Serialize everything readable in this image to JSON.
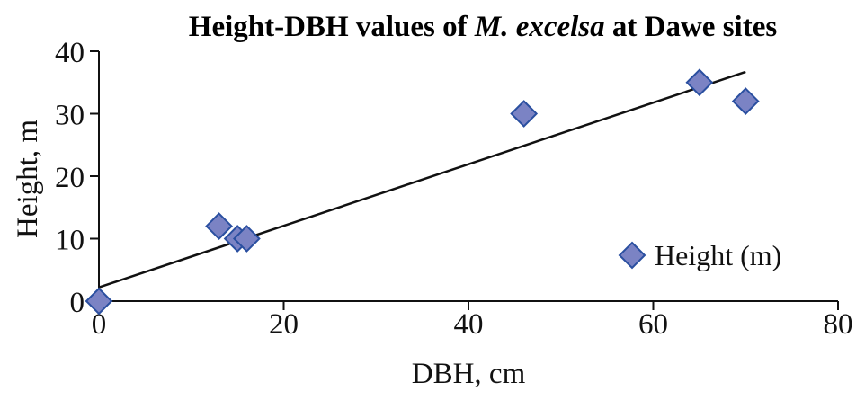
{
  "chart_data": {
    "type": "scatter",
    "title": {
      "prefix": "Height-DBH values of ",
      "italic": "M. excelsa",
      "suffix": " at Dawe sites"
    },
    "xlabel": "DBH, cm",
    "ylabel": "Height, m",
    "xlim": [
      0,
      80
    ],
    "ylim": [
      0,
      40
    ],
    "x_ticks": [
      "0",
      "20",
      "40",
      "60",
      "80"
    ],
    "y_ticks": [
      "0",
      "10",
      "20",
      "30",
      "40"
    ],
    "grid": false,
    "legend_position": "bottom-right",
    "series": [
      {
        "name": "Height (m)",
        "marker": "diamond",
        "color": "#7b83c4",
        "edge_color": "#2a4fa0",
        "points": [
          {
            "x": 0,
            "y": 0
          },
          {
            "x": 13,
            "y": 12
          },
          {
            "x": 15,
            "y": 10
          },
          {
            "x": 16,
            "y": 10
          },
          {
            "x": 46,
            "y": 30
          },
          {
            "x": 65,
            "y": 35
          },
          {
            "x": 70,
            "y": 32
          }
        ]
      }
    ],
    "trendline": {
      "type": "linear",
      "color": "#111111",
      "x_start": 0,
      "y_start": 2.2,
      "x_end": 70,
      "y_end": 36.7
    }
  }
}
